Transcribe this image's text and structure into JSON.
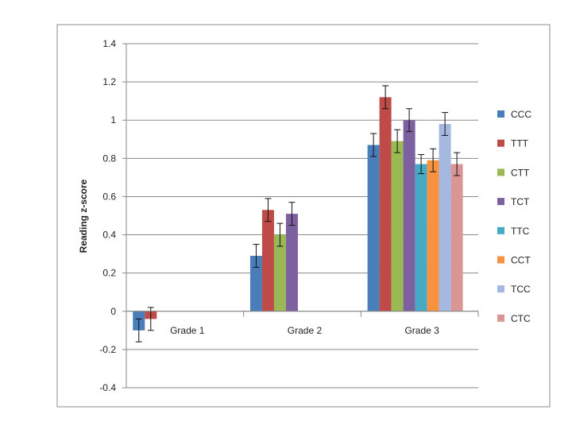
{
  "chart_data": {
    "type": "bar",
    "title": "",
    "xlabel": "",
    "ylabel": "Reading z-score",
    "ylim": [
      -0.4,
      1.4
    ],
    "yticks": [
      "1.4",
      "1.2",
      "1",
      "0.8",
      "0.6",
      "0.4",
      "0.2",
      "0",
      "-0.2",
      "-0.4"
    ],
    "ytick_values": [
      1.4,
      1.2,
      1.0,
      0.8,
      0.6,
      0.4,
      0.2,
      0,
      -0.2,
      -0.4
    ],
    "grid": true,
    "legend_position": "right",
    "categories": [
      "Grade 1",
      "Grade 2",
      "Grade 3"
    ],
    "series": [
      {
        "name": "CCC",
        "color": "#4a7ebb",
        "values": [
          -0.1,
          0.29,
          0.87
        ],
        "errors": [
          0.06,
          0.06,
          0.06
        ]
      },
      {
        "name": "TTT",
        "color": "#be4b48",
        "values": [
          -0.04,
          0.53,
          1.12
        ],
        "errors": [
          0.06,
          0.06,
          0.06
        ]
      },
      {
        "name": "CTT",
        "color": "#98b954",
        "values": [
          null,
          0.4,
          0.89
        ],
        "errors": [
          null,
          0.06,
          0.06
        ]
      },
      {
        "name": "TCT",
        "color": "#7d60a0",
        "values": [
          null,
          0.51,
          1.0
        ],
        "errors": [
          null,
          0.06,
          0.06
        ]
      },
      {
        "name": "TTC",
        "color": "#46aac5",
        "values": [
          null,
          null,
          0.77
        ],
        "errors": [
          null,
          null,
          0.05
        ]
      },
      {
        "name": "CCT",
        "color": "#f69240",
        "values": [
          null,
          null,
          0.79
        ],
        "errors": [
          null,
          null,
          0.06
        ]
      },
      {
        "name": "TCC",
        "color": "#a5b8df",
        "values": [
          null,
          null,
          0.98
        ],
        "errors": [
          null,
          null,
          0.06
        ]
      },
      {
        "name": "CTC",
        "color": "#d99694",
        "values": [
          null,
          null,
          0.77
        ],
        "errors": [
          null,
          null,
          0.06
        ]
      }
    ]
  }
}
